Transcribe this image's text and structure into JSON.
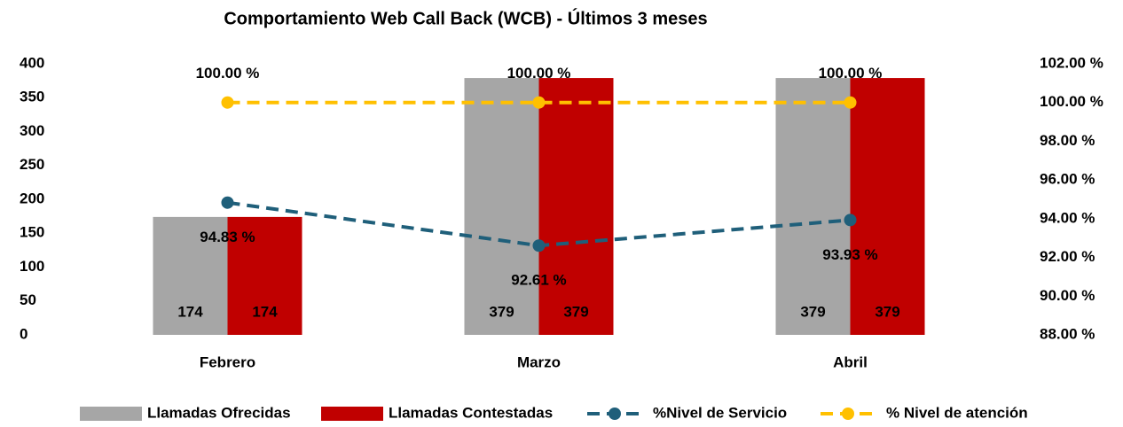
{
  "chart_data": {
    "type": "bar",
    "title": "Comportamiento Web Call Back (WCB) - Últimos 3 meses",
    "categories": [
      "Febrero",
      "Marzo",
      "Abril"
    ],
    "series": [
      {
        "name": "Llamadas Ofrecidas",
        "color": "#a6a6a6",
        "values": [
          174,
          379,
          379
        ]
      },
      {
        "name": "Llamadas Contestadas",
        "color": "#c00000",
        "values": [
          174,
          379,
          379
        ]
      },
      {
        "name": "%Nivel de Servicio",
        "type": "line",
        "axis": "y2",
        "color": "#1f5f7a",
        "values": [
          94.83,
          92.61,
          93.93
        ],
        "value_labels": [
          "94.83 %",
          "92.61 %",
          "93.93 %"
        ]
      },
      {
        "name": "% Nivel de atención",
        "type": "line",
        "axis": "y2",
        "color": "#ffc000",
        "values": [
          100,
          100,
          100
        ],
        "value_labels": [
          "100.00 %",
          "100.00 %",
          "100.00 %"
        ]
      }
    ],
    "ylim": [
      0,
      400
    ],
    "yticks": [
      0,
      50,
      100,
      150,
      200,
      250,
      300,
      350,
      400
    ],
    "y2lim": [
      88,
      102
    ],
    "y2ticks": [
      {
        "value": 88,
        "label": "88.00 %"
      },
      {
        "value": 90,
        "label": "90.00 %"
      },
      {
        "value": 92,
        "label": "92.00 %"
      },
      {
        "value": 94,
        "label": "94.00 %"
      },
      {
        "value": 96,
        "label": "96.00 %"
      },
      {
        "value": 98,
        "label": "98.00 %"
      },
      {
        "value": 100,
        "label": "100.00 %"
      },
      {
        "value": 102,
        "label": "102.00 %"
      }
    ],
    "legend": "bottom"
  }
}
